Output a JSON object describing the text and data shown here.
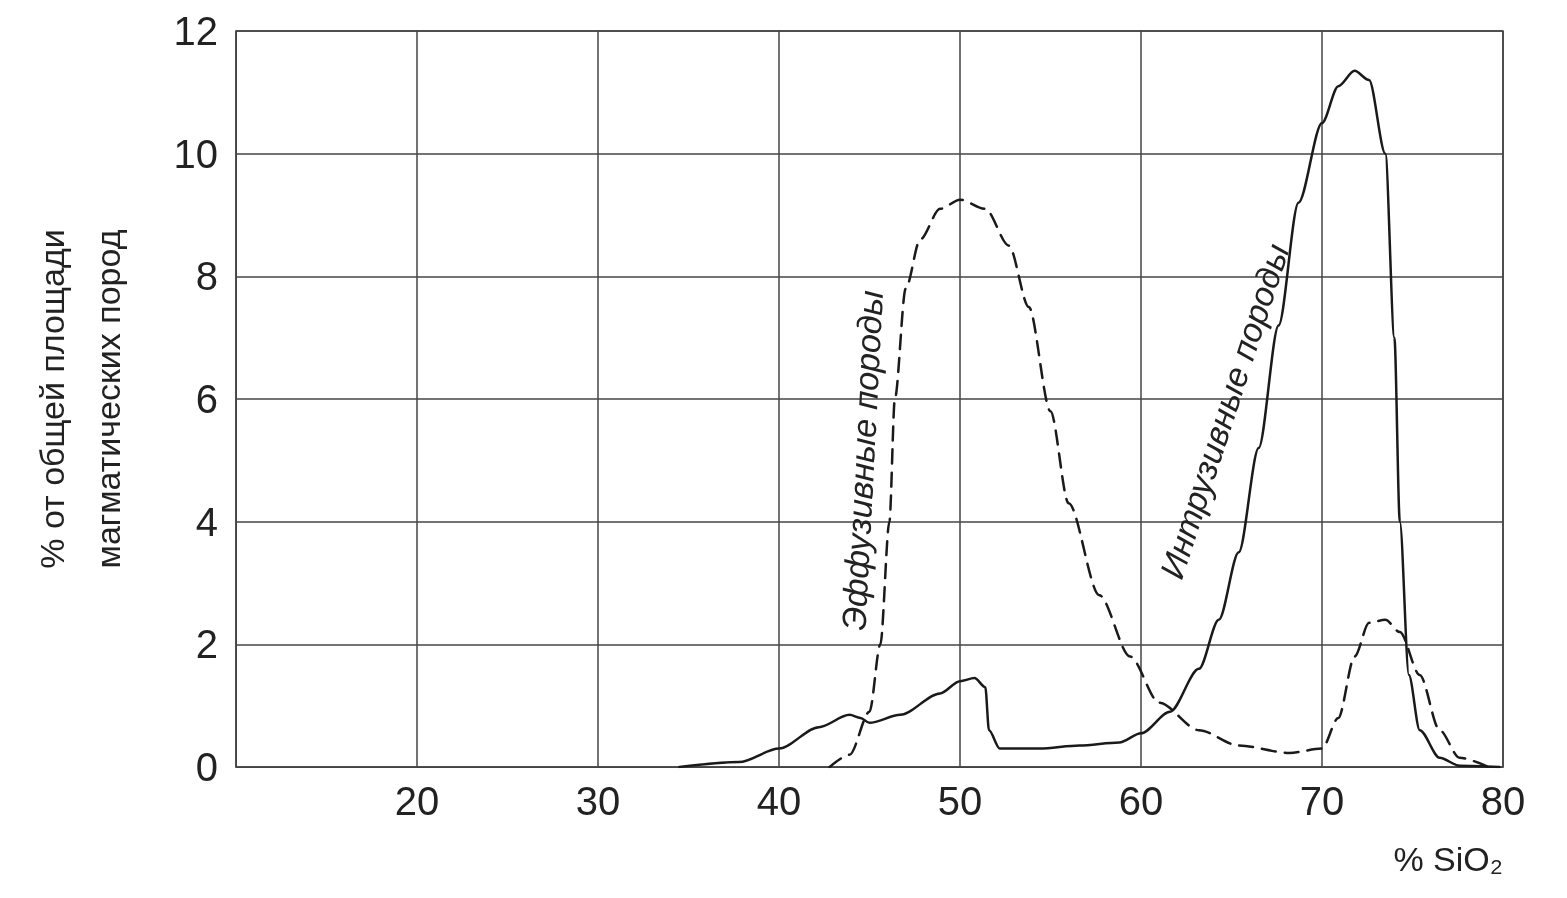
{
  "chart_data": {
    "type": "line",
    "xlabel": "% SiO₂",
    "ylabel": "% от общей площади\nмагматических пород",
    "xlim": [
      10,
      80
    ],
    "xticks": [
      {
        "value": 10,
        "label": null
      },
      20,
      30,
      40,
      50,
      60,
      70,
      80
    ],
    "ylim": [
      0,
      12
    ],
    "yticks": [
      0,
      2,
      4,
      6,
      8,
      10,
      12
    ],
    "grid": true,
    "marker": "none",
    "legend": false,
    "series": [
      {
        "name": "Интрузивные породы",
        "color": "#1a1a1a",
        "line_style": "solid",
        "x": [
          34.5,
          37.8,
          40,
          42.2,
          43.9,
          44.5,
          45,
          46.7,
          48.9,
          50,
          50.8,
          51.4,
          51.6,
          52.2,
          54.4,
          56.6,
          58.8,
          60,
          61.6,
          63.2,
          64.3,
          65.4,
          66.5,
          67.6,
          68.7,
          70,
          70.9,
          71.8,
          72.6,
          73.5,
          74,
          74.3,
          74.8,
          75.4,
          76.5,
          77.6,
          79.8
        ],
        "values": [
          0,
          0.08,
          0.3,
          0.65,
          0.85,
          0.8,
          0.72,
          0.85,
          1.2,
          1.4,
          1.45,
          1.3,
          0.6,
          0.3,
          0.3,
          0.35,
          0.4,
          0.55,
          0.9,
          1.6,
          2.4,
          3.5,
          5.2,
          7.2,
          9.2,
          10.5,
          11.1,
          11.35,
          11.2,
          10,
          7,
          4,
          1.5,
          0.6,
          0.15,
          0.02,
          0
        ]
      },
      {
        "name": "Эффузивные породы",
        "color": "#1a1a1a",
        "line_style": "dashed",
        "x": [
          42.8,
          43.9,
          45,
          45.6,
          46.1,
          46.4,
          47,
          47.8,
          48.9,
          50,
          51.4,
          52.7,
          53.8,
          55,
          56,
          57.7,
          59.4,
          61,
          63.2,
          65.4,
          68.2,
          70,
          70.9,
          71.8,
          72.6,
          73.5,
          74.3,
          75.4,
          76.5,
          77.6,
          79.2
        ],
        "values": [
          0,
          0.2,
          0.9,
          2,
          4,
          6,
          7.8,
          8.6,
          9.1,
          9.25,
          9.1,
          8.5,
          7.5,
          5.8,
          4.3,
          2.8,
          1.8,
          1.05,
          0.6,
          0.35,
          0.23,
          0.3,
          0.8,
          1.8,
          2.35,
          2.4,
          2.2,
          1.5,
          0.6,
          0.15,
          0
        ]
      }
    ]
  }
}
